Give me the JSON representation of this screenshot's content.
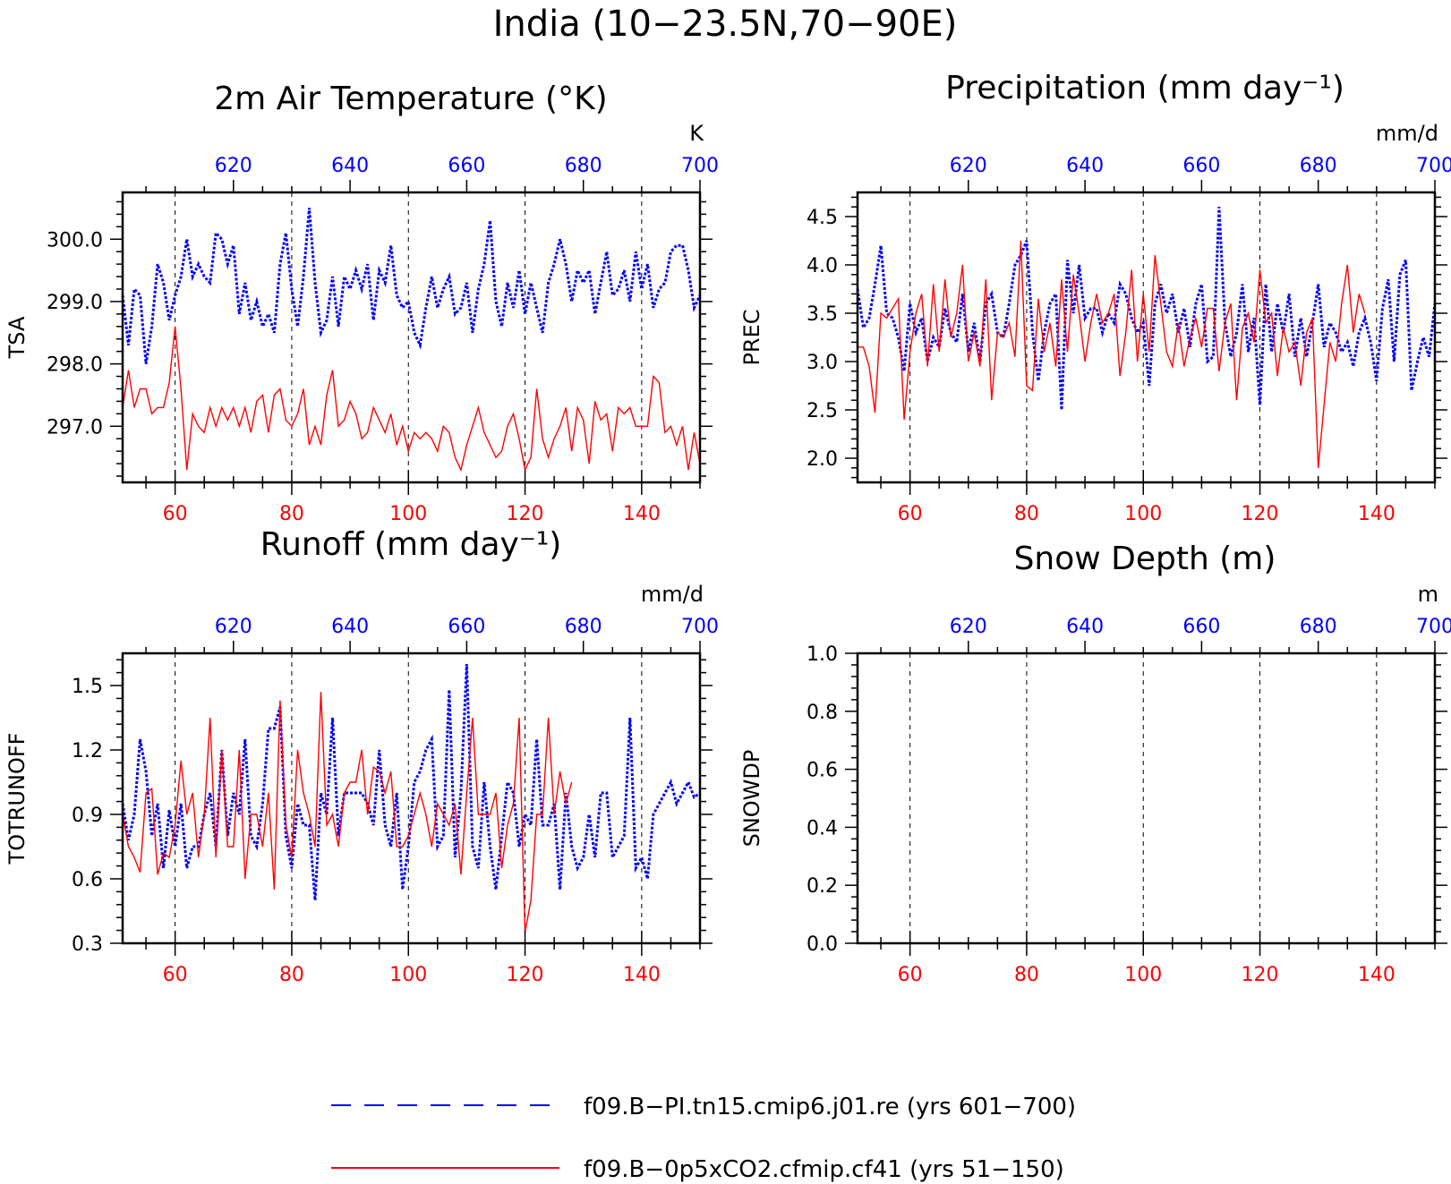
{
  "page_title": "India (10−23.5N,70−90E)",
  "colors": {
    "series_pi": "#0000ff",
    "series_co2": "#ff0000",
    "axis": "#000000"
  },
  "legend": {
    "entries": [
      {
        "label": "f09.B−PI.tn15.cmip6.j01.re (yrs 601−700)",
        "color": "#0000ff",
        "style": "dashed"
      },
      {
        "label": "f09.B−0p5xCO2.cfmip.cf41 (yrs 51−150)",
        "color": "#ff0000",
        "style": "solid"
      }
    ]
  },
  "chart_data": [
    {
      "id": "tsa",
      "type": "line",
      "title": "2m Air Temperature (°K)",
      "ylabel": "TSA",
      "top_unit": "K",
      "xlim_bottom": [
        51,
        150
      ],
      "xlim_top": [
        601,
        700
      ],
      "ylim": [
        296.1,
        300.75
      ],
      "x_bottom_ticks": [
        60,
        80,
        100,
        120,
        140
      ],
      "x_top_ticks": [
        620,
        640,
        660,
        680,
        700
      ],
      "y_ticks": [
        297.0,
        298.0,
        299.0,
        300.0
      ],
      "y_tick_labels": [
        "297.0",
        "298.0",
        "299.0",
        "300.0"
      ],
      "series": [
        {
          "color": "#0000ff",
          "style": "dotted",
          "axis": "top",
          "values": [
            299.1,
            298.3,
            299.2,
            299.1,
            298.0,
            298.6,
            299.6,
            299.3,
            298.7,
            299.1,
            299.4,
            300.0,
            299.4,
            299.6,
            299.4,
            299.3,
            300.1,
            300.0,
            299.6,
            299.9,
            298.8,
            299.3,
            298.7,
            299.0,
            298.6,
            298.8,
            298.5,
            299.6,
            300.1,
            299.2,
            298.6,
            299.4,
            300.5,
            299.3,
            298.5,
            298.7,
            299.4,
            298.6,
            299.4,
            299.2,
            299.5,
            299.2,
            299.6,
            298.7,
            299.5,
            299.3,
            299.9,
            299.1,
            298.9,
            299.0,
            298.5,
            298.3,
            298.9,
            299.4,
            298.9,
            299.2,
            299.4,
            298.8,
            298.9,
            299.3,
            298.5,
            299.2,
            299.6,
            300.3,
            299.0,
            298.6,
            299.3,
            298.9,
            299.5,
            298.8,
            299.3,
            298.9,
            298.5,
            299.3,
            299.6,
            300.0,
            299.6,
            299.0,
            299.5,
            299.3,
            299.5,
            298.8,
            299.3,
            299.8,
            299.1,
            299.2,
            299.5,
            299.0,
            299.8,
            299.2,
            299.6,
            298.9,
            299.2,
            299.3,
            299.8,
            299.9,
            299.9,
            299.5,
            298.9,
            299.1
          ]
        },
        {
          "color": "#ff0000",
          "style": "solid",
          "axis": "bottom",
          "values": [
            297.3,
            297.9,
            297.3,
            297.6,
            297.6,
            297.2,
            297.3,
            297.3,
            297.7,
            298.6,
            297.6,
            296.3,
            297.2,
            297.0,
            296.9,
            297.3,
            297.0,
            297.3,
            297.1,
            297.3,
            297.0,
            297.3,
            296.9,
            297.4,
            297.5,
            296.9,
            297.5,
            297.6,
            297.1,
            297.0,
            297.2,
            297.6,
            296.7,
            297.0,
            296.7,
            297.5,
            297.9,
            297.0,
            297.1,
            297.4,
            297.2,
            296.8,
            296.9,
            297.3,
            297.1,
            296.9,
            297.2,
            296.7,
            297.0,
            296.6,
            296.9,
            296.8,
            296.9,
            296.8,
            296.6,
            297.0,
            296.9,
            296.5,
            296.3,
            296.7,
            297.0,
            297.3,
            296.9,
            296.7,
            296.5,
            296.6,
            297.0,
            297.2,
            296.8,
            296.3,
            296.5,
            297.6,
            296.8,
            296.5,
            296.8,
            297.0,
            297.3,
            296.6,
            297.3,
            297.1,
            296.4,
            297.4,
            297.1,
            297.2,
            296.6,
            297.3,
            297.2,
            297.3,
            297.0,
            297.0,
            297.0,
            297.8,
            297.7,
            296.9,
            297.0,
            296.7,
            297.0,
            296.3,
            296.9,
            296.4
          ]
        }
      ]
    },
    {
      "id": "prec",
      "type": "line",
      "title": "Precipitation (mm day⁻¹)",
      "ylabel": "PREC",
      "top_unit": "mm/d",
      "xlim_bottom": [
        51,
        150
      ],
      "xlim_top": [
        601,
        700
      ],
      "ylim": [
        1.75,
        4.75
      ],
      "x_bottom_ticks": [
        60,
        80,
        100,
        120,
        140
      ],
      "x_top_ticks": [
        620,
        640,
        660,
        680,
        700
      ],
      "y_ticks": [
        2.0,
        2.5,
        3.0,
        3.5,
        4.0,
        4.5
      ],
      "y_tick_labels": [
        "2.0",
        "2.5",
        "3.0",
        "3.5",
        "4.0",
        "4.5"
      ],
      "series": [
        {
          "color": "#0000ff",
          "style": "dotted",
          "axis": "top",
          "values": [
            3.75,
            3.35,
            3.45,
            3.8,
            4.2,
            3.5,
            3.45,
            3.25,
            2.9,
            3.6,
            3.3,
            3.45,
            3.0,
            3.25,
            3.15,
            3.55,
            3.3,
            3.2,
            3.7,
            3.1,
            3.4,
            3.0,
            3.6,
            3.7,
            3.3,
            3.25,
            3.6,
            4.0,
            4.1,
            4.25,
            3.3,
            2.8,
            3.3,
            3.6,
            3.7,
            2.5,
            4.05,
            3.5,
            4.0,
            3.45,
            3.55,
            3.55,
            3.3,
            3.5,
            3.4,
            3.8,
            3.7,
            3.45,
            3.3,
            3.4,
            2.75,
            3.6,
            3.8,
            3.5,
            3.7,
            3.3,
            3.55,
            3.15,
            3.6,
            3.8,
            3.0,
            3.05,
            4.6,
            3.4,
            3.05,
            3.3,
            3.8,
            3.1,
            3.45,
            2.55,
            3.8,
            3.1,
            3.6,
            3.3,
            3.7,
            3.05,
            3.45,
            3.05,
            3.4,
            3.8,
            3.15,
            3.4,
            3.3,
            3.1,
            3.2,
            2.95,
            3.3,
            3.45,
            3.2,
            2.8,
            3.55,
            3.85,
            3.0,
            3.9,
            4.05,
            2.7,
            3.0,
            3.25,
            3.05,
            3.6
          ]
        },
        {
          "color": "#ff0000",
          "style": "solid",
          "axis": "bottom",
          "values": [
            3.15,
            3.15,
            2.95,
            2.47,
            3.5,
            3.45,
            3.55,
            3.65,
            2.4,
            3.1,
            3.5,
            3.7,
            2.95,
            3.8,
            3.1,
            3.85,
            3.25,
            3.5,
            4.0,
            3.0,
            3.3,
            2.95,
            3.85,
            2.6,
            3.3,
            3.25,
            3.4,
            3.05,
            4.25,
            2.75,
            2.7,
            3.65,
            3.1,
            3.4,
            2.95,
            3.85,
            3.1,
            3.9,
            3.5,
            3.0,
            3.4,
            3.7,
            3.4,
            3.5,
            3.7,
            2.85,
            3.3,
            3.95,
            3.0,
            3.7,
            3.1,
            4.1,
            3.6,
            3.1,
            2.95,
            3.4,
            2.95,
            3.25,
            3.45,
            3.15,
            3.55,
            3.55,
            2.9,
            3.4,
            3.6,
            2.6,
            3.35,
            3.5,
            3.2,
            3.95,
            3.4,
            3.5,
            2.85,
            3.35,
            3.1,
            3.2,
            2.75,
            3.3,
            3.45,
            1.9,
            2.55,
            3.2,
            3.0,
            3.6,
            4.0,
            3.3,
            3.7,
            3.5
          ]
        }
      ]
    },
    {
      "id": "runoff",
      "type": "line",
      "title": "Runoff (mm day⁻¹)",
      "ylabel": "TOTRUNOFF",
      "top_unit": "mm/d",
      "xlim_bottom": [
        51,
        150
      ],
      "xlim_top": [
        601,
        700
      ],
      "ylim": [
        0.3,
        1.65
      ],
      "x_bottom_ticks": [
        60,
        80,
        100,
        120,
        140
      ],
      "x_top_ticks": [
        620,
        640,
        660,
        680,
        700
      ],
      "y_ticks": [
        0.3,
        0.6,
        0.9,
        1.2,
        1.5
      ],
      "y_tick_labels": [
        "0.3",
        "0.6",
        "0.9",
        "1.2",
        "1.5"
      ],
      "series": [
        {
          "color": "#0000ff",
          "style": "dotted",
          "axis": "top",
          "values": [
            0.95,
            0.78,
            0.9,
            1.25,
            1.1,
            0.8,
            0.95,
            0.65,
            0.92,
            0.75,
            0.95,
            0.65,
            0.75,
            0.75,
            0.9,
            1.0,
            0.75,
            1.2,
            0.8,
            1.0,
            0.9,
            1.25,
            0.8,
            0.75,
            0.95,
            1.3,
            1.3,
            1.4,
            0.8,
            0.65,
            0.95,
            0.85,
            0.85,
            0.5,
            1.0,
            0.9,
            1.35,
            0.8,
            1.0,
            1.0,
            1.0,
            1.0,
            0.95,
            0.85,
            1.2,
            0.85,
            0.75,
            1.0,
            0.55,
            0.75,
            1.05,
            1.1,
            1.2,
            1.25,
            0.75,
            0.8,
            1.48,
            0.7,
            1.0,
            1.6,
            0.75,
            0.65,
            1.05,
            0.75,
            0.55,
            0.8,
            1.05,
            1.0,
            0.75,
            0.9,
            0.85,
            1.25,
            0.85,
            0.85,
            0.95,
            0.55,
            1.0,
            0.75,
            0.65,
            0.7,
            0.9,
            0.7,
            1.0,
            1.0,
            0.7,
            0.75,
            0.8,
            1.35,
            0.65,
            0.7,
            0.6,
            0.9,
            0.95,
            1.0,
            1.05,
            0.95,
            1.0,
            1.05,
            0.98,
            1.0
          ]
        },
        {
          "color": "#ff0000",
          "style": "solid",
          "axis": "bottom",
          "values": [
            0.9,
            0.75,
            0.7,
            0.63,
            1.0,
            1.02,
            0.62,
            0.72,
            0.7,
            0.85,
            1.15,
            0.9,
            1.0,
            0.7,
            0.9,
            1.35,
            0.7,
            1.2,
            0.75,
            0.75,
            1.2,
            0.6,
            0.9,
            0.9,
            0.75,
            1.0,
            0.55,
            1.43,
            0.85,
            0.7,
            1.2,
            1.0,
            0.9,
            0.75,
            1.47,
            0.85,
            0.9,
            0.75,
            1.0,
            1.05,
            1.05,
            1.2,
            0.9,
            1.12,
            1.1,
            1.0,
            1.1,
            0.75,
            0.75,
            0.8,
            0.9,
            1.0,
            0.9,
            0.75,
            0.95,
            0.9,
            0.85,
            0.95,
            0.62,
            1.0,
            1.35,
            0.9,
            0.9,
            0.9,
            1.0,
            0.65,
            0.85,
            0.95,
            1.35,
            0.35,
            0.5,
            0.9,
            0.9,
            1.35,
            0.9,
            1.1,
            0.95,
            1.05
          ]
        }
      ]
    },
    {
      "id": "snowdp",
      "type": "line",
      "title": "Snow Depth (m)",
      "ylabel": "SNOWDP",
      "top_unit": "m",
      "xlim_bottom": [
        51,
        150
      ],
      "xlim_top": [
        601,
        700
      ],
      "ylim": [
        0.0,
        1.0
      ],
      "x_bottom_ticks": [
        60,
        80,
        100,
        120,
        140
      ],
      "x_top_ticks": [
        620,
        640,
        660,
        680,
        700
      ],
      "y_ticks": [
        0.0,
        0.2,
        0.4,
        0.6,
        0.8,
        1.0
      ],
      "y_tick_labels": [
        "0.0",
        "0.2",
        "0.4",
        "0.6",
        "0.8",
        "1.0"
      ],
      "series": []
    }
  ]
}
